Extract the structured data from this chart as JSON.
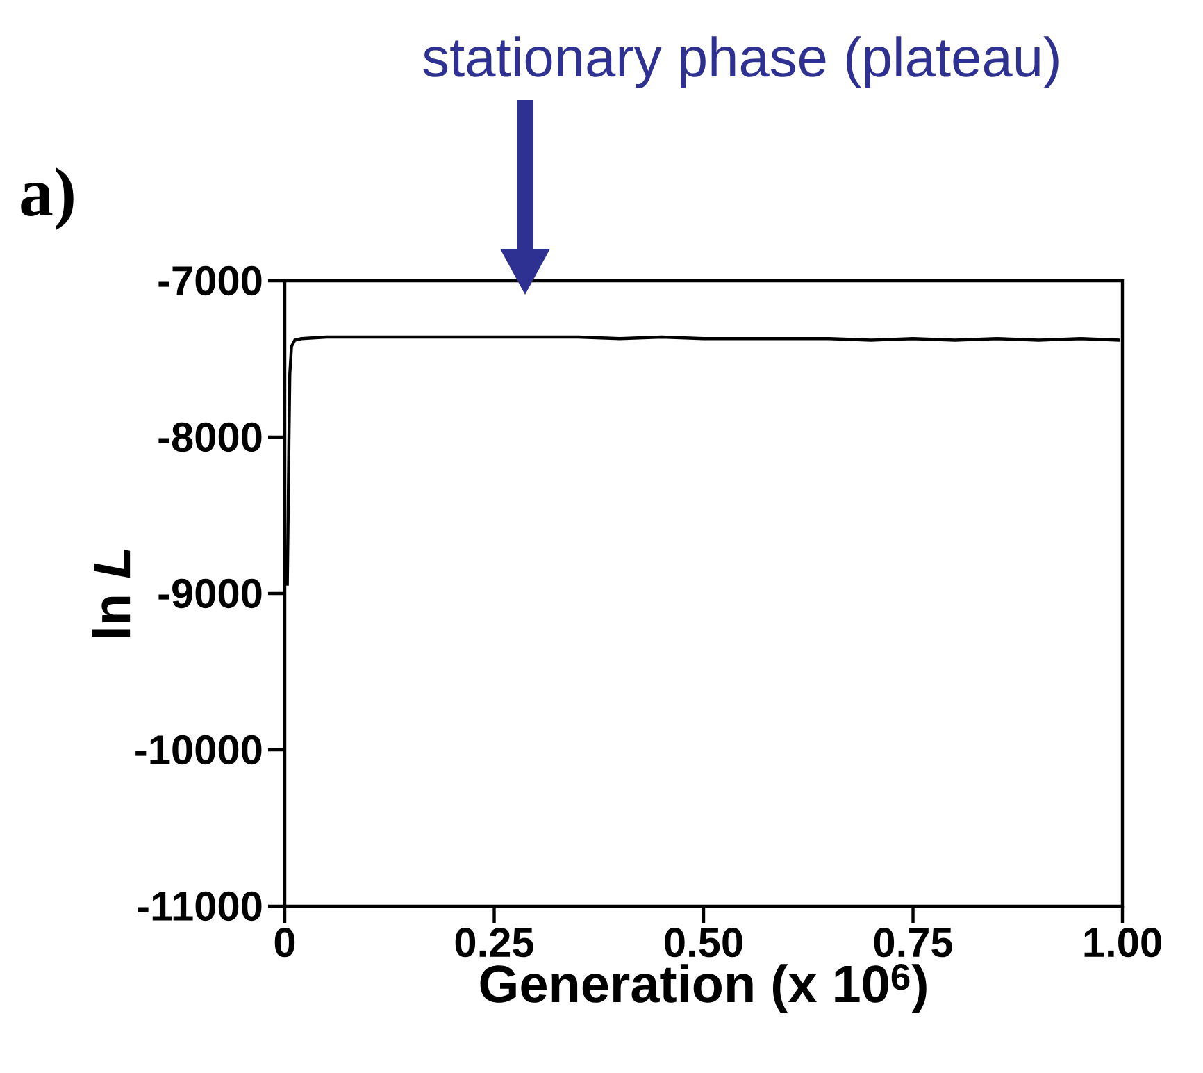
{
  "chart_data": {
    "type": "line",
    "xlabel": "Generation (x 10$^{6}$)",
    "ylabel": "ln *L*",
    "x": [
      0.003,
      0.004,
      0.005,
      0.006,
      0.008,
      0.012,
      0.02,
      0.05,
      0.1,
      0.15,
      0.2,
      0.25,
      0.3,
      0.35,
      0.4,
      0.45,
      0.5,
      0.55,
      0.6,
      0.65,
      0.7,
      0.75,
      0.8,
      0.85,
      0.9,
      0.95,
      0.997
    ],
    "series": [
      {
        "color": "#000000",
        "values": [
          -8950,
          -8500,
          -8000,
          -7600,
          -7420,
          -7380,
          -7370,
          -7360,
          -7360,
          -7360,
          -7360,
          -7360,
          -7360,
          -7360,
          -7370,
          -7360,
          -7370,
          -7370,
          -7370,
          -7370,
          -7380,
          -7370,
          -7380,
          -7370,
          -7380,
          -7370,
          -7380
        ]
      }
    ],
    "xlim": [
      0,
      1
    ],
    "ylim": [
      -11000,
      -7000
    ],
    "xticks": [
      0,
      0.25,
      {
        "value": 0.5,
        "label": "0.50"
      },
      0.75,
      {
        "value": 1,
        "label": "1.00"
      }
    ],
    "yticks": [
      -11000,
      -10000,
      -9000,
      -8000,
      -7000
    ],
    "annotations": [
      "a)",
      "stationary phase (plateau)"
    ]
  }
}
